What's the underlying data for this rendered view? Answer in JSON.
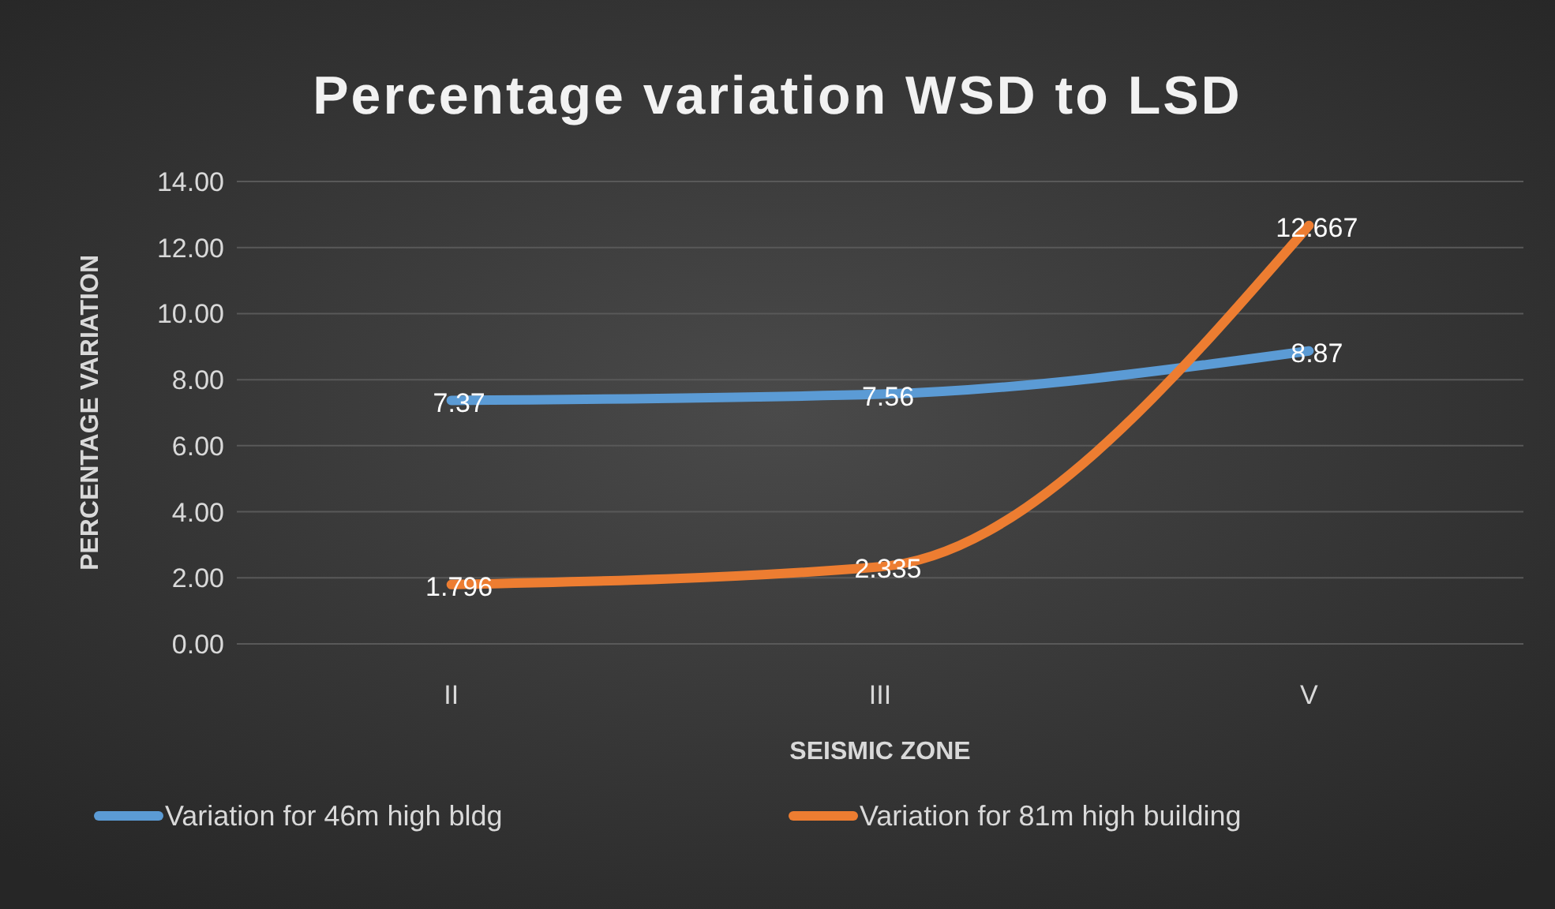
{
  "chart_data": {
    "type": "line",
    "title": "Percentage variation WSD to LSD",
    "xlabel": "SEISMIC ZONE",
    "ylabel": "PERCENTAGE VARIATION",
    "categories": [
      "II",
      "III",
      "V"
    ],
    "series": [
      {
        "name": "Variation for 46m high bldg",
        "color": "#5b9bd5",
        "values": [
          7.37,
          7.56,
          8.87
        ]
      },
      {
        "name": "Variation for 81m high building",
        "color": "#ed7d31",
        "values": [
          1.796,
          2.335,
          12.667
        ]
      }
    ],
    "ylim": [
      0,
      14
    ],
    "yticks": [
      {
        "value": 0,
        "label": "0.00"
      },
      {
        "value": 2,
        "label": "2.00"
      },
      {
        "value": 4,
        "label": "4.00"
      },
      {
        "value": 6,
        "label": "6.00"
      },
      {
        "value": 8,
        "label": "8.00"
      },
      {
        "value": 10,
        "label": "10.00"
      },
      {
        "value": 12,
        "label": "12.00"
      },
      {
        "value": 14,
        "label": "14.00"
      }
    ],
    "grid": "y",
    "legend": "bottom",
    "data_labels": true,
    "marker": "none",
    "line_style": "solid"
  }
}
